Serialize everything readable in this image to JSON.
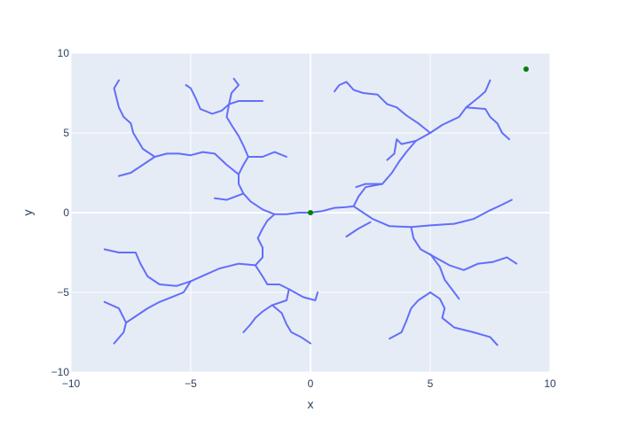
{
  "chart_data": {
    "type": "line",
    "title": "",
    "xlabel": "x",
    "ylabel": "y",
    "xlim": [
      -10,
      10
    ],
    "ylim": [
      -10,
      10
    ],
    "xticks": [
      -10,
      -5,
      0,
      5,
      10
    ],
    "yticks": [
      -10,
      -5,
      0,
      5,
      10
    ],
    "grid": true,
    "legend": "none",
    "colors": {
      "plot_bg": "#E5ECF6",
      "grid": "#ffffff",
      "line": "#636EFA",
      "marker": "#008000"
    },
    "series": [
      {
        "type": "line",
        "polylines": [
          [
            [
              0.0,
              0.0
            ],
            [
              0.5,
              0.1
            ],
            [
              1.0,
              0.3
            ],
            [
              1.5,
              0.35
            ],
            [
              1.8,
              0.4
            ],
            [
              2.2,
              0.0
            ],
            [
              2.6,
              -0.4
            ],
            [
              3.3,
              -0.85
            ],
            [
              4.2,
              -0.9
            ],
            [
              5.0,
              -0.8
            ],
            [
              6.0,
              -0.7
            ],
            [
              6.8,
              -0.4
            ],
            [
              7.5,
              0.15
            ],
            [
              8.0,
              0.5
            ],
            [
              8.4,
              0.8
            ]
          ],
          [
            [
              1.8,
              0.4
            ],
            [
              2.0,
              1.0
            ],
            [
              2.3,
              1.6
            ],
            [
              3.0,
              1.8
            ],
            [
              3.4,
              2.5
            ],
            [
              3.7,
              3.2
            ],
            [
              4.0,
              3.8
            ],
            [
              4.4,
              4.5
            ],
            [
              5.0,
              5.0
            ],
            [
              5.5,
              5.5
            ],
            [
              6.2,
              6.0
            ],
            [
              6.5,
              6.6
            ],
            [
              7.0,
              7.2
            ],
            [
              7.3,
              7.6
            ],
            [
              7.5,
              8.3
            ]
          ],
          [
            [
              6.5,
              6.6
            ],
            [
              7.3,
              6.5
            ],
            [
              7.5,
              6.0
            ],
            [
              7.8,
              5.6
            ],
            [
              8.0,
              5.0
            ],
            [
              8.3,
              4.6
            ]
          ],
          [
            [
              3.0,
              1.8
            ],
            [
              2.3,
              1.8
            ],
            [
              1.9,
              1.6
            ]
          ],
          [
            [
              4.4,
              4.5
            ],
            [
              3.8,
              4.3
            ],
            [
              3.6,
              4.6
            ],
            [
              3.5,
              3.7
            ],
            [
              3.2,
              3.3
            ]
          ],
          [
            [
              5.0,
              5.0
            ],
            [
              4.5,
              5.6
            ],
            [
              4.0,
              6.1
            ],
            [
              3.6,
              6.6
            ],
            [
              3.2,
              6.8
            ],
            [
              2.8,
              7.4
            ],
            [
              2.2,
              7.5
            ],
            [
              1.8,
              7.7
            ],
            [
              1.5,
              8.2
            ],
            [
              1.2,
              8.0
            ],
            [
              1.0,
              7.6
            ]
          ],
          [
            [
              4.2,
              -0.9
            ],
            [
              4.3,
              -1.6
            ],
            [
              4.6,
              -2.3
            ],
            [
              5.2,
              -2.8
            ],
            [
              5.8,
              -3.3
            ],
            [
              6.4,
              -3.6
            ],
            [
              7.0,
              -3.2
            ],
            [
              7.6,
              -3.1
            ],
            [
              8.2,
              -2.8
            ],
            [
              8.6,
              -3.2
            ]
          ],
          [
            [
              5.0,
              -2.6
            ],
            [
              5.4,
              -3.4
            ],
            [
              5.6,
              -4.2
            ],
            [
              5.9,
              -4.8
            ],
            [
              6.2,
              -5.4
            ]
          ],
          [
            [
              5.0,
              -5.0
            ],
            [
              5.4,
              -5.4
            ],
            [
              5.6,
              -6.0
            ],
            [
              5.5,
              -6.6
            ],
            [
              6.0,
              -7.2
            ],
            [
              6.8,
              -7.5
            ],
            [
              7.5,
              -7.8
            ],
            [
              7.8,
              -8.3
            ]
          ],
          [
            [
              5.0,
              -5.0
            ],
            [
              4.5,
              -5.5
            ],
            [
              4.2,
              -6.0
            ],
            [
              4.0,
              -6.8
            ],
            [
              3.8,
              -7.5
            ],
            [
              3.3,
              -7.9
            ]
          ],
          [
            [
              2.5,
              -0.6
            ],
            [
              2.0,
              -1.0
            ],
            [
              1.5,
              -1.5
            ]
          ],
          [
            [
              0.0,
              0.0
            ],
            [
              -0.5,
              0.0
            ],
            [
              -1.0,
              -0.1
            ],
            [
              -1.5,
              -0.1
            ],
            [
              -1.8,
              -0.5
            ],
            [
              -2.0,
              -1.0
            ],
            [
              -2.2,
              -1.6
            ],
            [
              -2.0,
              -2.2
            ],
            [
              -2.0,
              -2.8
            ],
            [
              -2.3,
              -3.3
            ],
            [
              -2.0,
              -4.0
            ],
            [
              -1.8,
              -4.5
            ]
          ],
          [
            [
              -2.3,
              -3.3
            ],
            [
              -3.0,
              -3.2
            ],
            [
              -3.8,
              -3.5
            ],
            [
              -4.4,
              -3.9
            ],
            [
              -5.0,
              -4.3
            ],
            [
              -5.6,
              -4.6
            ],
            [
              -6.3,
              -4.5
            ],
            [
              -6.8,
              -4.0
            ],
            [
              -7.1,
              -3.2
            ],
            [
              -7.3,
              -2.5
            ],
            [
              -8.0,
              -2.5
            ],
            [
              -8.6,
              -2.3
            ]
          ],
          [
            [
              -5.0,
              -4.3
            ],
            [
              -5.3,
              -5.0
            ],
            [
              -5.8,
              -5.3
            ],
            [
              -6.3,
              -5.6
            ],
            [
              -6.8,
              -6.0
            ],
            [
              -7.3,
              -6.5
            ],
            [
              -7.7,
              -6.9
            ],
            [
              -7.8,
              -7.5
            ],
            [
              -8.2,
              -8.2
            ]
          ],
          [
            [
              -7.7,
              -6.9
            ],
            [
              -8.0,
              -6.0
            ],
            [
              -8.6,
              -5.6
            ]
          ],
          [
            [
              -1.8,
              -4.5
            ],
            [
              -1.3,
              -4.5
            ],
            [
              -0.9,
              -4.8
            ],
            [
              -1.0,
              -5.5
            ],
            [
              -1.6,
              -5.8
            ],
            [
              -2.0,
              -6.2
            ],
            [
              -2.3,
              -6.6
            ],
            [
              -2.5,
              -7.0
            ],
            [
              -2.8,
              -7.5
            ]
          ],
          [
            [
              -1.6,
              -5.8
            ],
            [
              -1.2,
              -6.3
            ],
            [
              -1.0,
              -7.0
            ],
            [
              -0.8,
              -7.5
            ],
            [
              -0.4,
              -7.8
            ],
            [
              0.0,
              -8.2
            ]
          ],
          [
            [
              -0.9,
              -4.8
            ],
            [
              -0.3,
              -5.3
            ],
            [
              0.2,
              -5.5
            ],
            [
              0.3,
              -5.0
            ]
          ],
          [
            [
              -1.5,
              -0.1
            ],
            [
              -2.0,
              0.2
            ],
            [
              -2.5,
              0.7
            ],
            [
              -2.8,
              1.2
            ],
            [
              -3.0,
              1.8
            ],
            [
              -3.0,
              2.4
            ],
            [
              -2.8,
              3.0
            ],
            [
              -2.6,
              3.5
            ],
            [
              -2.8,
              4.2
            ],
            [
              -3.0,
              4.8
            ],
            [
              -3.3,
              5.5
            ],
            [
              -3.5,
              6.0
            ],
            [
              -3.4,
              6.8
            ],
            [
              -3.3,
              7.5
            ],
            [
              -3.0,
              8.0
            ],
            [
              -3.2,
              8.4
            ]
          ],
          [
            [
              -2.8,
              1.2
            ],
            [
              -3.5,
              0.8
            ],
            [
              -4.0,
              0.9
            ]
          ],
          [
            [
              -3.0,
              2.4
            ],
            [
              -3.5,
              3.0
            ],
            [
              -4.0,
              3.7
            ],
            [
              -4.5,
              3.8
            ],
            [
              -5.0,
              3.6
            ],
            [
              -5.5,
              3.7
            ],
            [
              -6.0,
              3.7
            ],
            [
              -6.5,
              3.5
            ],
            [
              -7.0,
              3.0
            ],
            [
              -7.5,
              2.5
            ],
            [
              -8.0,
              2.3
            ]
          ],
          [
            [
              -2.6,
              3.5
            ],
            [
              -2.0,
              3.5
            ],
            [
              -1.5,
              3.8
            ],
            [
              -1.0,
              3.5
            ]
          ],
          [
            [
              -6.5,
              3.5
            ],
            [
              -7.0,
              4.0
            ],
            [
              -7.2,
              4.5
            ],
            [
              -7.4,
              5.0
            ],
            [
              -7.5,
              5.6
            ],
            [
              -7.8,
              6.0
            ],
            [
              -8.0,
              6.6
            ],
            [
              -8.1,
              7.2
            ],
            [
              -8.2,
              7.8
            ],
            [
              -8.0,
              8.3
            ]
          ],
          [
            [
              -3.4,
              6.8
            ],
            [
              -3.0,
              7.0
            ],
            [
              -2.5,
              7.0
            ],
            [
              -2.0,
              7.0
            ]
          ],
          [
            [
              -3.4,
              6.8
            ],
            [
              -3.7,
              6.4
            ],
            [
              -4.1,
              6.2
            ],
            [
              -4.6,
              6.5
            ],
            [
              -4.8,
              7.2
            ],
            [
              -5.0,
              7.8
            ],
            [
              -5.2,
              8.0
            ]
          ]
        ]
      },
      {
        "type": "scatter",
        "points": [
          [
            0.0,
            0.0
          ],
          [
            9.0,
            9.0
          ]
        ]
      }
    ]
  }
}
